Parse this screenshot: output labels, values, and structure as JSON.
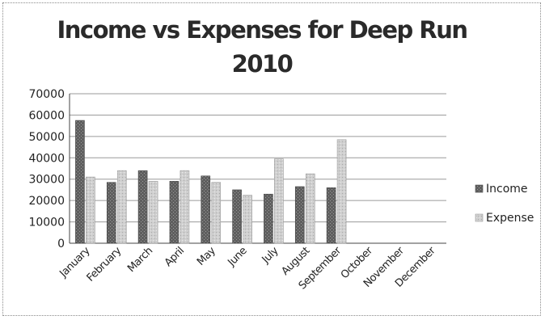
{
  "chart_data": {
    "type": "bar",
    "title": "Income vs Expenses for Deep Run 2010",
    "xlabel": "",
    "ylabel": "",
    "categories": [
      "January",
      "February",
      "March",
      "April",
      "May",
      "June",
      "July",
      "August",
      "September",
      "October",
      "November",
      "December"
    ],
    "series": [
      {
        "name": "Income",
        "values": [
          57500,
          28500,
          34000,
          29000,
          31500,
          25000,
          23000,
          26500,
          26000,
          null,
          null,
          null
        ]
      },
      {
        "name": "Expense",
        "values": [
          31000,
          34000,
          29000,
          34000,
          28500,
          22500,
          39500,
          32500,
          48500,
          null,
          null,
          null
        ]
      }
    ],
    "ylim": [
      0,
      70000
    ],
    "yticks": [
      0,
      10000,
      20000,
      30000,
      40000,
      50000,
      60000,
      70000
    ],
    "grid": "horizontal",
    "legend": "right",
    "colors": {
      "Income": "#6e6e6e",
      "Expense": "#c8c8c8"
    }
  }
}
